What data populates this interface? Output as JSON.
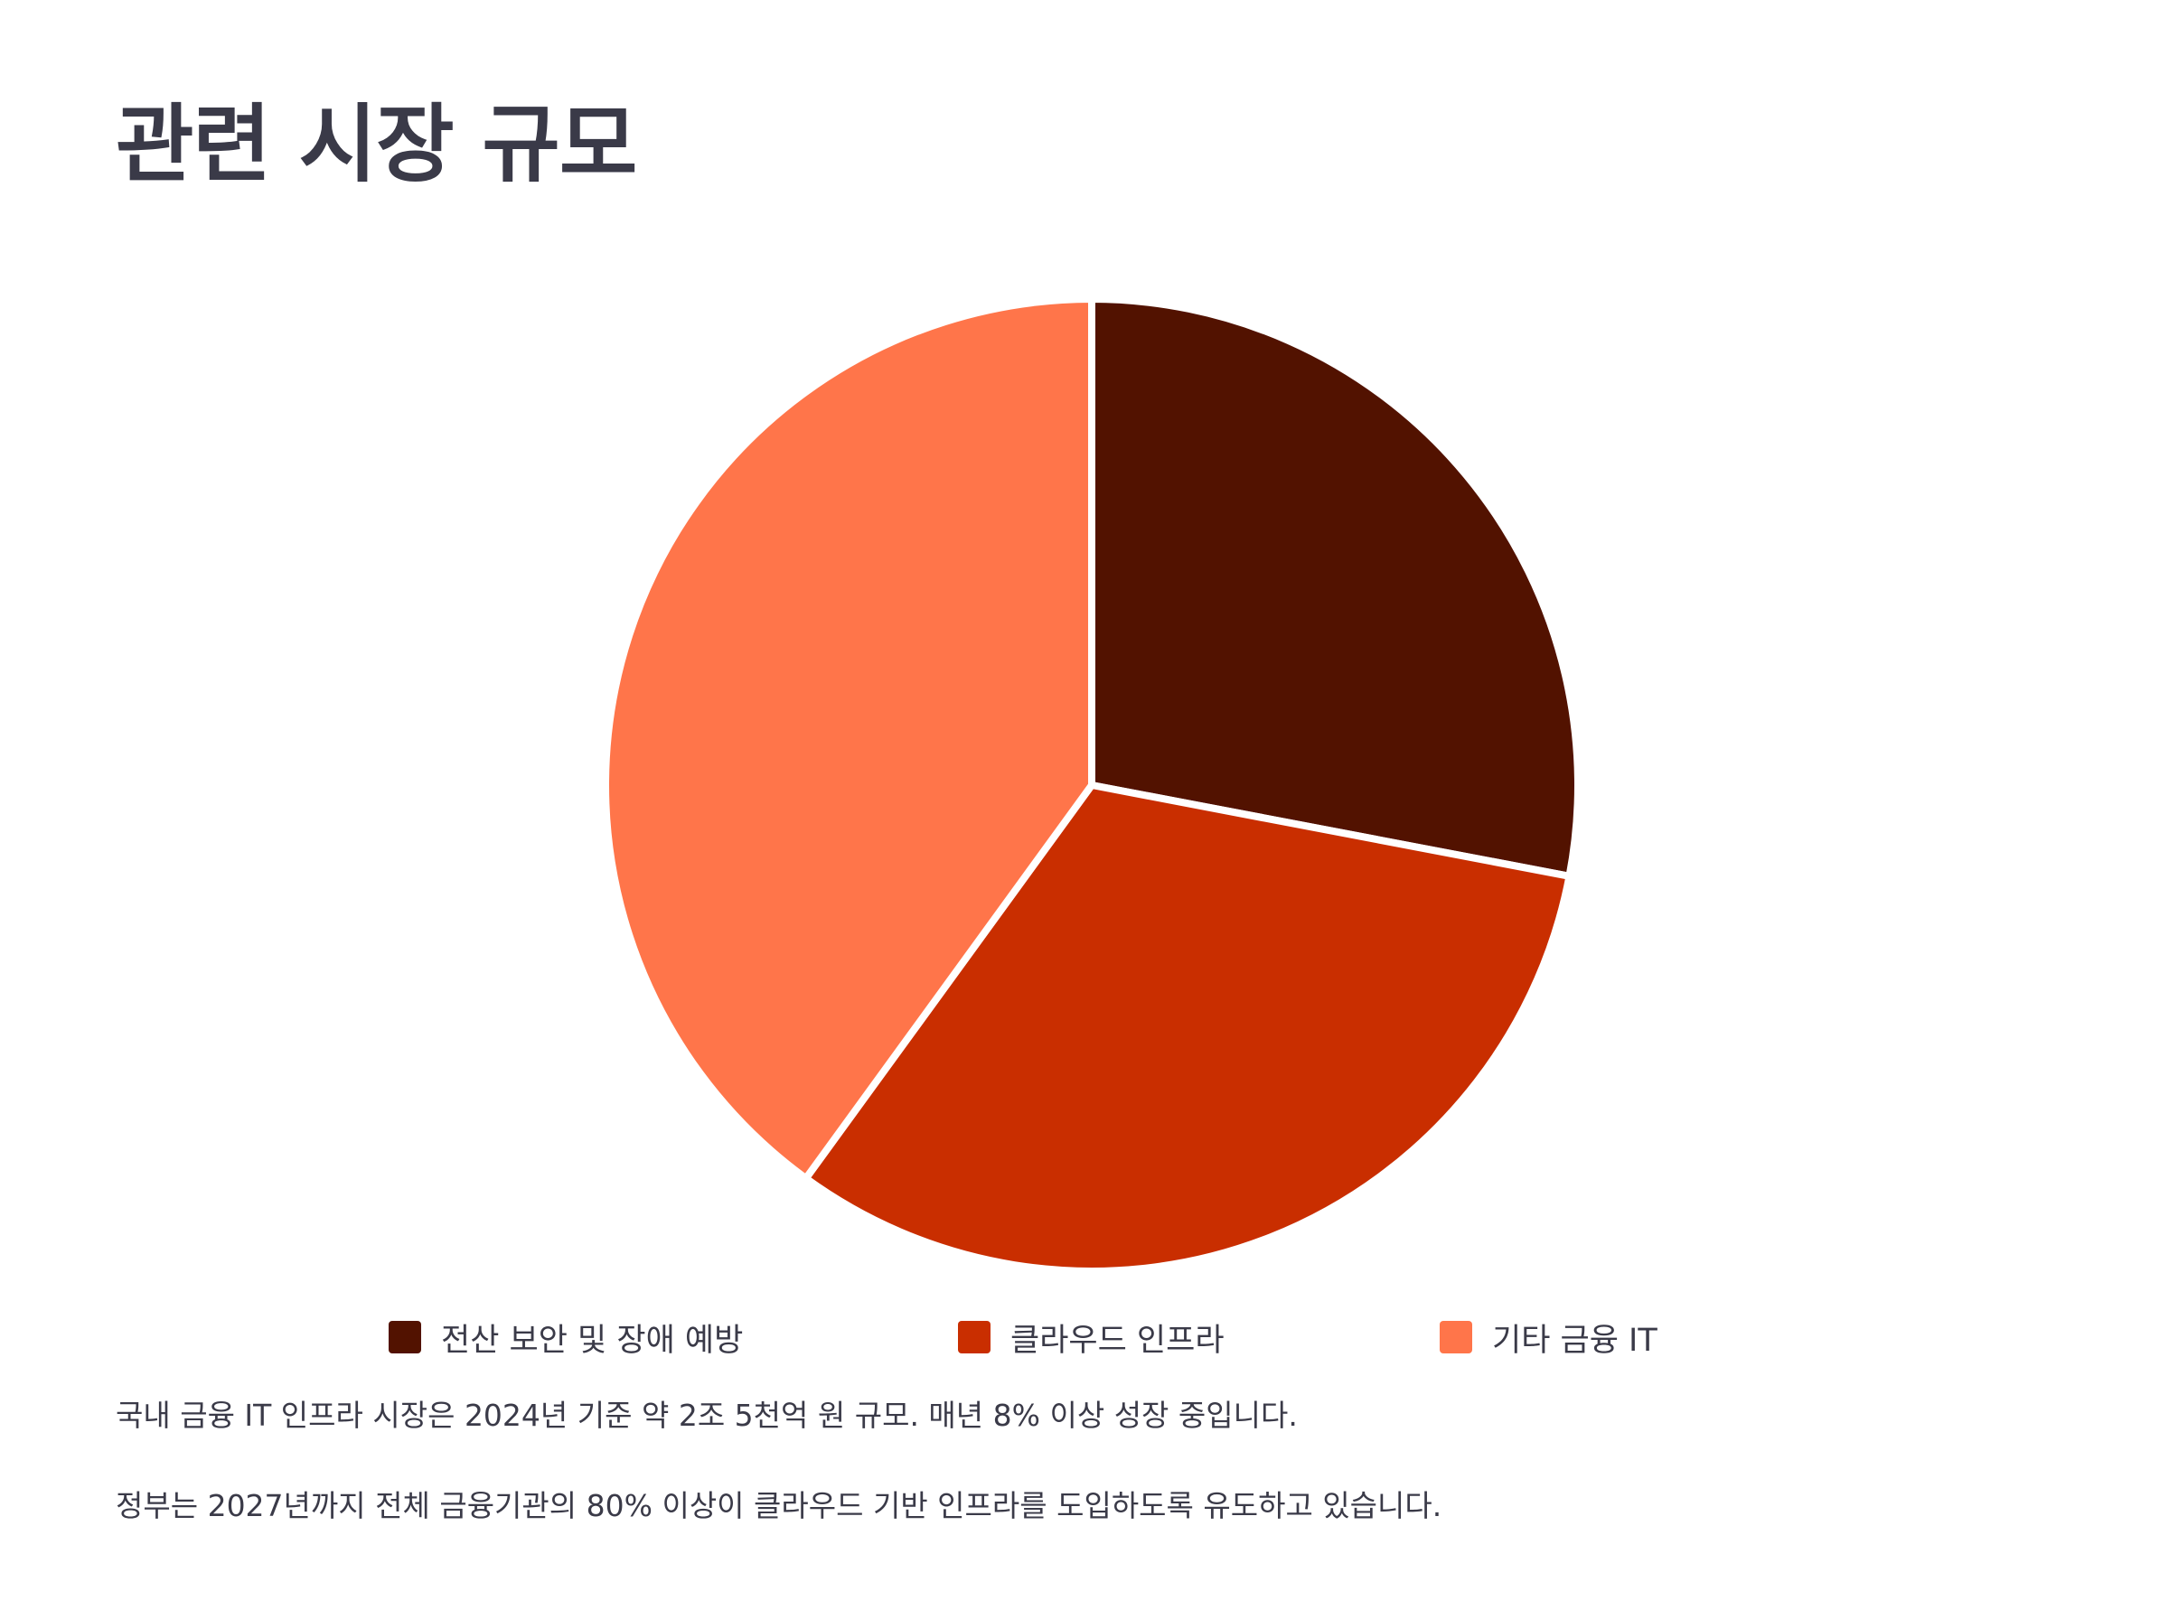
{
  "title": "관련 시장 규모",
  "chart_data": {
    "type": "pie",
    "start_angle_deg": -90,
    "direction": "clockwise",
    "slices": [
      {
        "label": "전산 보안 및 장애 예방",
        "value": 28,
        "color": "#521200"
      },
      {
        "label": "클라우드 인프라",
        "value": 32,
        "color": "#c92e00"
      },
      {
        "label": "기타 금융 IT",
        "value": 40,
        "color": "#ff754a"
      }
    ],
    "legend": "bottom",
    "slice_border_color": "#ffffff"
  },
  "notes": [
    "국내 금융 IT 인프라 시장은 2024년 기준 약 2조 5천억 원 규모. 매년 8% 이상 성장 중입니다.",
    "정부는 2027년까지 전체 금융기관의 80% 이상이 클라우드 기반 인프라를 도입하도록 유도하고 있습니다."
  ]
}
